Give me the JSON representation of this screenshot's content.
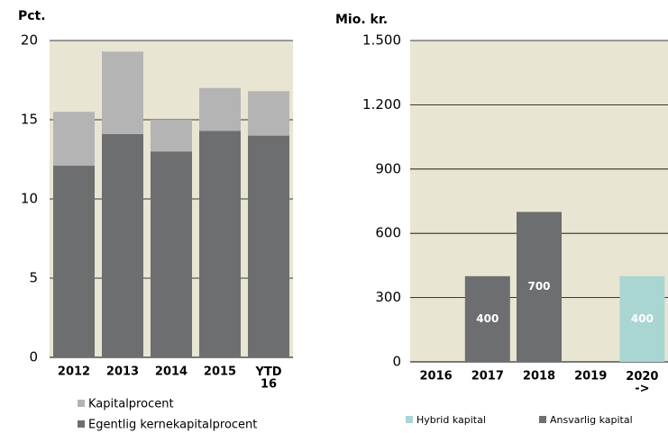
{
  "chart_data": [
    {
      "type": "bar",
      "stacked": true,
      "y_label": "Pct.",
      "categories": [
        "2012",
        "2013",
        "2014",
        "2015",
        "YTD\n16"
      ],
      "series": [
        {
          "name": "Egentlig kernekapitalprocent",
          "color": "#6d6e70",
          "values": [
            12.1,
            14.1,
            13.0,
            14.3,
            14.0
          ]
        },
        {
          "name": "Kapitalprocent",
          "color": "#b4b4b4",
          "values": [
            3.4,
            5.2,
            2.0,
            2.7,
            2.8
          ]
        }
      ],
      "ylim": [
        0,
        20
      ],
      "yticks": [
        0,
        5,
        10,
        15,
        20
      ],
      "grid": true,
      "background": "#e8e5d3"
    },
    {
      "type": "bar",
      "stacked": true,
      "y_label": "Mio. kr.",
      "categories": [
        "2016",
        "2017",
        "2018",
        "2019",
        "2020\n->"
      ],
      "series": [
        {
          "name": "Hybrid kapital",
          "color": "#a9d5d3",
          "values": [
            null,
            null,
            null,
            null,
            400
          ]
        },
        {
          "name": "Ansvarlig kapital",
          "color": "#6d6e70",
          "values": [
            null,
            400,
            700,
            null,
            null
          ]
        }
      ],
      "data_labels": true,
      "ylim": [
        0,
        1500
      ],
      "yticks": [
        0,
        300,
        600,
        900,
        {
          "value": 1200,
          "label": "1.200"
        },
        {
          "value": 1500,
          "label": "1.500"
        }
      ],
      "grid": true,
      "background": "#e8e5d3"
    }
  ]
}
